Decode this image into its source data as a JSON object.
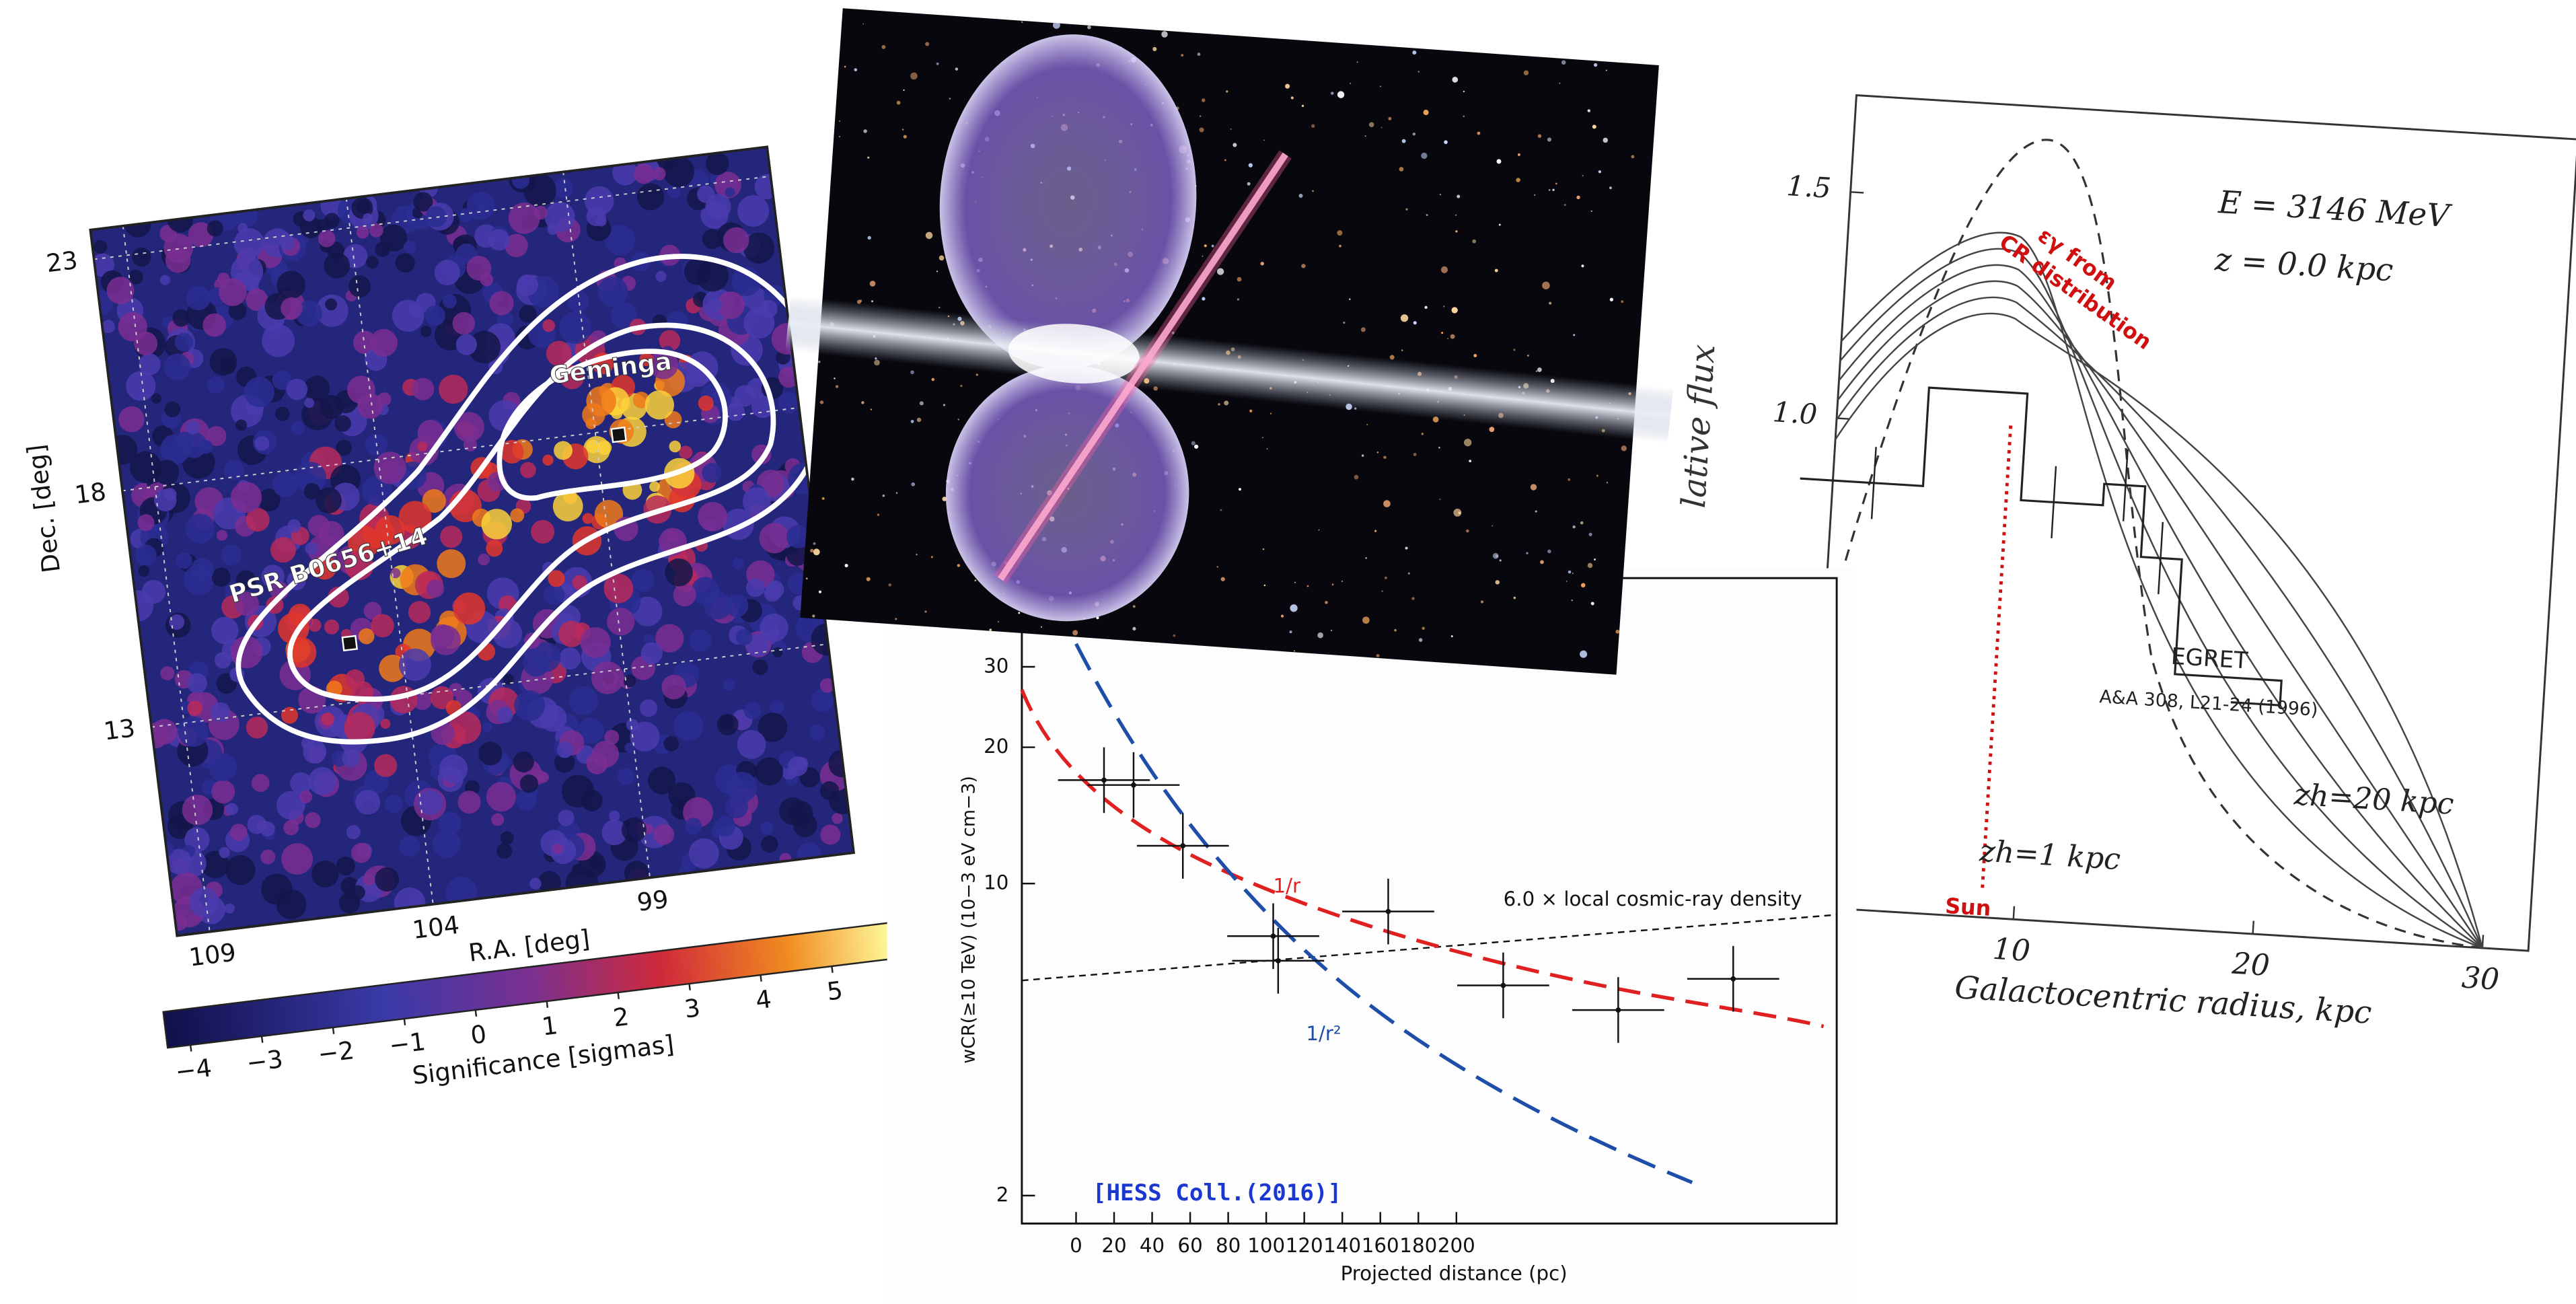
{
  "significance_map": {
    "y_ticks": [
      "23",
      "18",
      "13"
    ],
    "x_ticks": [
      "109",
      "104",
      "99"
    ],
    "y_label": "Dec. [deg]",
    "x_label": "R.A. [deg]",
    "sources": [
      "Geminga",
      "PSR B0656+14"
    ],
    "colorbar_ticks": [
      "−4",
      "−3",
      "−2",
      "−1",
      "0",
      "1",
      "2",
      "3",
      "4",
      "5"
    ],
    "colorbar_label": "Significance [sigmas]"
  },
  "hess_plot": {
    "y_ticks": [
      "30",
      "20",
      "10",
      "2"
    ],
    "x_ticks": [
      "0",
      "20",
      "40",
      "60",
      "80",
      "100",
      "120",
      "140",
      "160",
      "180",
      "200"
    ],
    "y_label": "wCR(≥10 TeV) (10−3 eV cm−3)",
    "x_label": "Projected distance (pc)",
    "curve_labels": [
      "1/r",
      "1/r²"
    ],
    "reference_label": "6.0 × local cosmic-ray density",
    "citation": "[HESS Coll.(2016)]"
  },
  "radial_plot": {
    "y_ticks": [
      "1.5",
      "1.0"
    ],
    "x_ticks": [
      "10",
      "20",
      "30"
    ],
    "y_label": "lative flux",
    "x_label": "Galactocentric radius, kpc",
    "energy": "E = 3146 MeV",
    "height": "z = 0.0 kpc",
    "model_label": [
      "εγ from",
      "CR distribution"
    ],
    "data_label": "EGRET",
    "data_reference": "A&A 308, L21-24 (1996)",
    "halo_labels": [
      "zh=20 kpc",
      "zh=1 kpc"
    ],
    "sun_label": "Sun"
  }
}
